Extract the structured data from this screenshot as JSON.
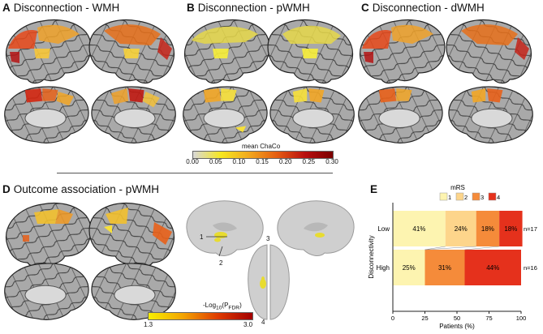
{
  "panels": {
    "a": {
      "letter": "A",
      "title": "Disconnection - WMH"
    },
    "b": {
      "letter": "B",
      "title": "Disconnection - pWMH"
    },
    "c": {
      "letter": "C",
      "title": "Disconnection - dWMH"
    },
    "d": {
      "letter": "D",
      "title": "Outcome association - pWMH"
    },
    "e": {
      "letter": "E"
    }
  },
  "colorbar_chaco": {
    "label": "mean ChaCo",
    "ticks": [
      "0.00",
      "0.05",
      "0.10",
      "0.15",
      "0.20",
      "0.25",
      "0.30"
    ],
    "colors": [
      "#d8d8d8",
      "#f6e71f",
      "#f2a81d",
      "#e55d12",
      "#b90f0f",
      "#7b0000"
    ]
  },
  "colorbar_pfdr": {
    "label_prefix": "-Log",
    "label_sub": "10",
    "label_mid": "(P",
    "label_sub2": "FDR",
    "label_end": ")",
    "min": "1.3",
    "max": "3.0",
    "colors": [
      "#f7ef00",
      "#f3a300",
      "#df3b00",
      "#a30000"
    ]
  },
  "glass_brain_labels": [
    "1",
    "2",
    "3",
    "4"
  ],
  "chart_data": {
    "type": "bar",
    "orientation": "horizontal-stacked",
    "legend_title": "mRS",
    "legend": [
      "1",
      "2",
      "3",
      "4"
    ],
    "legend_colors": [
      "#fdf4b0",
      "#fdd58b",
      "#f58b3a",
      "#e5311c"
    ],
    "ylabel": "Disconnectivity",
    "xlabel": "Patients (%)",
    "xticks": [
      "0",
      "25",
      "50",
      "75",
      "100"
    ],
    "xlim": [
      0,
      100
    ],
    "categories": [
      "Low",
      "High"
    ],
    "n_labels": [
      "n=17",
      "n=16"
    ],
    "series": [
      {
        "name": "1",
        "values": [
          41,
          25
        ]
      },
      {
        "name": "2",
        "values": [
          24,
          0
        ]
      },
      {
        "name": "3",
        "values": [
          18,
          31
        ]
      },
      {
        "name": "4",
        "values": [
          18,
          44
        ]
      }
    ],
    "data_labels": [
      [
        "41%",
        "24%",
        "18%",
        "18%"
      ],
      [
        "25%",
        "",
        "31%",
        "44%"
      ]
    ]
  }
}
